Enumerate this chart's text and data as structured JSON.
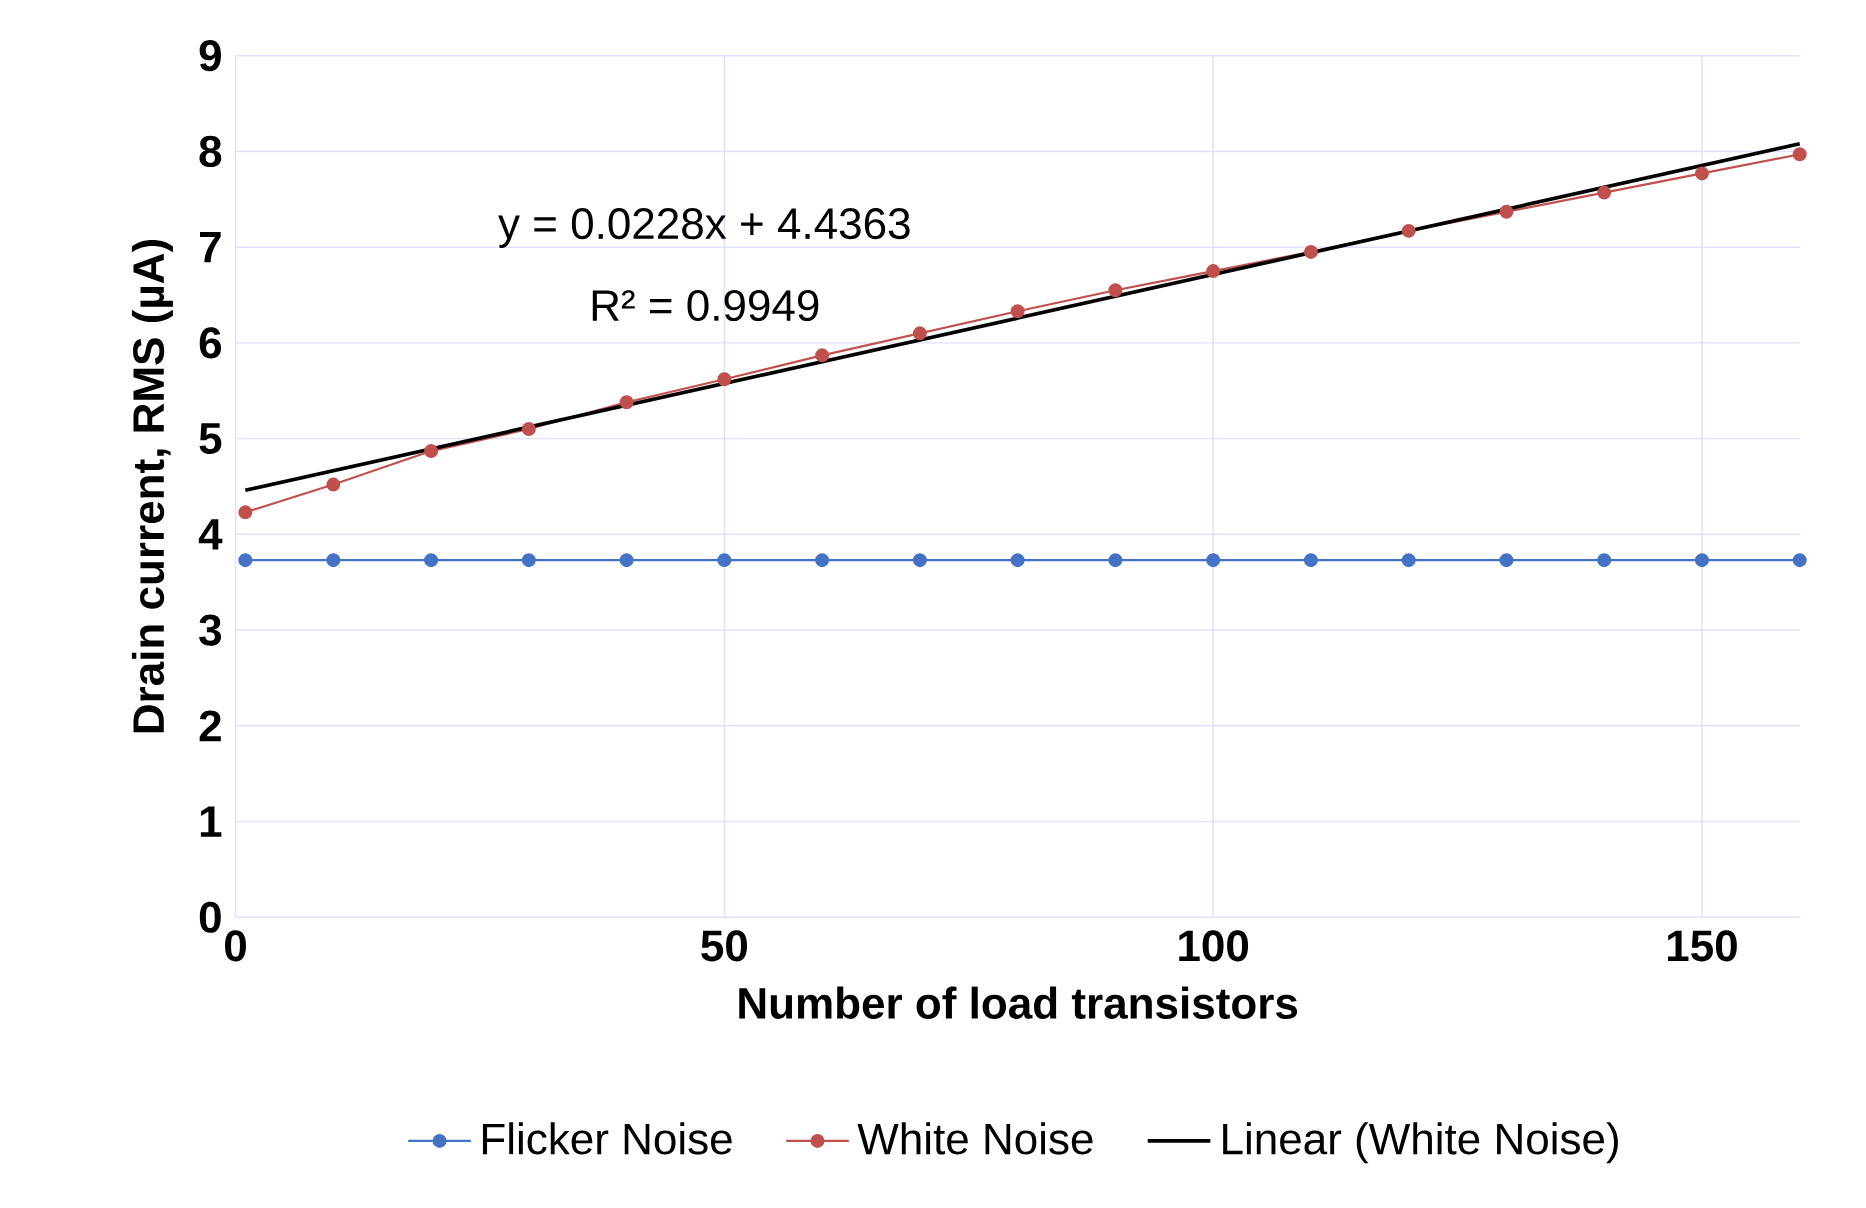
{
  "chart_data": {
    "type": "line",
    "xlabel": "Number of load transistors",
    "ylabel": "Drain current, RMS (µA)",
    "x": [
      1,
      10,
      20,
      30,
      40,
      50,
      60,
      70,
      80,
      90,
      100,
      110,
      120,
      130,
      140,
      150,
      160
    ],
    "series": [
      {
        "name": "Flicker Noise",
        "color": "#4472c4",
        "values": [
          3.73,
          3.73,
          3.73,
          3.73,
          3.73,
          3.73,
          3.73,
          3.73,
          3.73,
          3.73,
          3.73,
          3.73,
          3.73,
          3.73,
          3.73,
          3.73,
          3.73
        ]
      },
      {
        "name": "White Noise",
        "color": "#c0504d",
        "values": [
          4.23,
          4.52,
          4.87,
          5.1,
          5.38,
          5.62,
          5.87,
          6.1,
          6.33,
          6.55,
          6.75,
          6.95,
          7.17,
          7.37,
          7.57,
          7.77,
          7.97
        ]
      },
      {
        "name": "Linear (White Noise)",
        "color": "#000000",
        "marker": "none",
        "x": [
          1,
          160
        ],
        "values": [
          4.46,
          8.08
        ]
      }
    ],
    "annotations": [
      "y = 0.0228x + 4.4363",
      "R² = 0.9949"
    ],
    "xlim": [
      0,
      160
    ],
    "ylim": [
      0,
      9
    ],
    "xticks": [
      0,
      50,
      100,
      150
    ],
    "yticks": [
      0,
      1,
      2,
      3,
      4,
      5,
      6,
      7,
      8,
      9
    ],
    "grid": true,
    "legend": "bottom",
    "marker": "circle",
    "line_style": "solid"
  }
}
